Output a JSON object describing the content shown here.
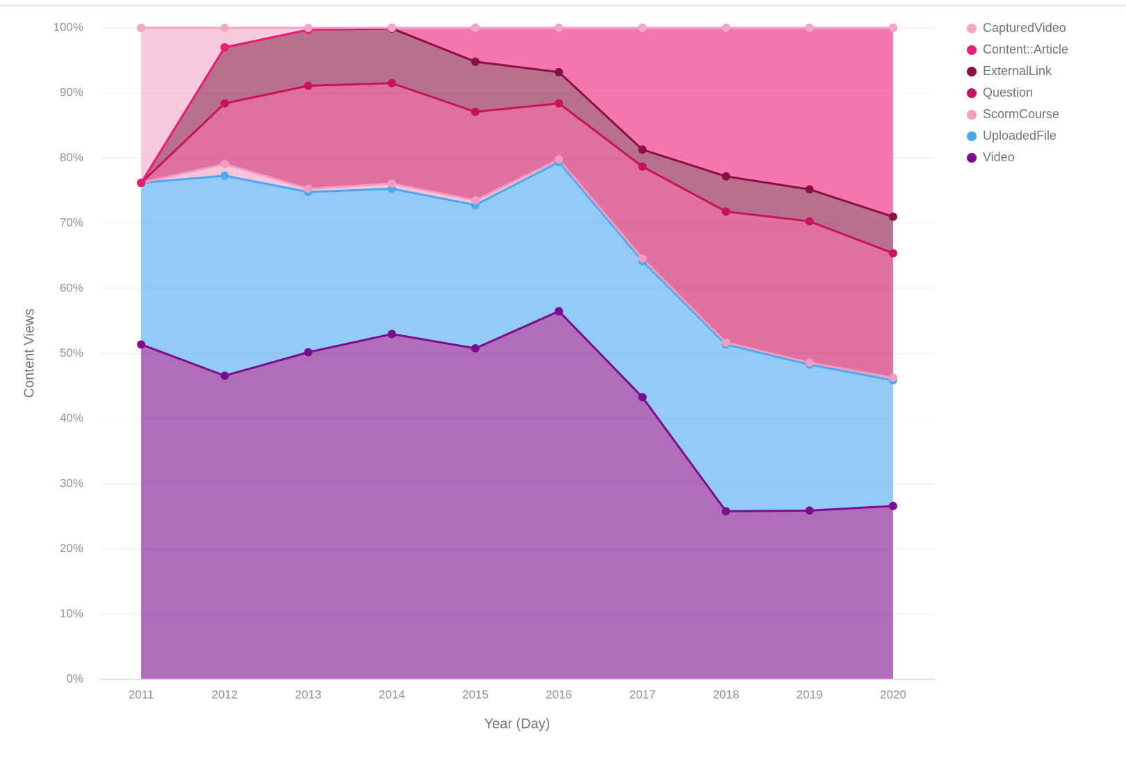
{
  "chart_data": {
    "type": "stacked_area_percent",
    "x_label": "Year (Day)",
    "y_label": "Content Views",
    "categories": [
      "2011",
      "2012",
      "2013",
      "2014",
      "2015",
      "2016",
      "2017",
      "2018",
      "2019",
      "2020"
    ],
    "ylim": [
      0,
      100
    ],
    "yticks": [
      {
        "value": 0,
        "label": "0%"
      },
      {
        "value": 10,
        "label": "10%"
      },
      {
        "value": 20,
        "label": "20%"
      },
      {
        "value": 30,
        "label": "30%"
      },
      {
        "value": 40,
        "label": "40%"
      },
      {
        "value": 50,
        "label": "50%"
      },
      {
        "value": 60,
        "label": "60%"
      },
      {
        "value": 70,
        "label": "70%"
      },
      {
        "value": 80,
        "label": "80%"
      },
      {
        "value": 90,
        "label": "90%"
      },
      {
        "value": 100,
        "label": "100%"
      }
    ],
    "grid": true,
    "legend": "right",
    "series": [
      {
        "name": "Video",
        "color": "#7d0b90",
        "values": [
          51.4,
          46.6,
          50.2,
          53.0,
          50.8,
          56.5,
          43.3,
          25.8,
          25.9,
          26.6
        ]
      },
      {
        "name": "UploadedFile",
        "color": "#4aa8ef",
        "values": [
          24.8,
          30.7,
          24.6,
          22.3,
          22.0,
          22.9,
          20.9,
          25.6,
          22.4,
          19.3
        ]
      },
      {
        "name": "ScormCourse",
        "color": "#f29cc3",
        "values": [
          0,
          1.8,
          0.5,
          0.8,
          0.7,
          0.4,
          0.4,
          0.3,
          0.3,
          0.4
        ]
      },
      {
        "name": "Question",
        "color": "#c8125d",
        "values": [
          0,
          9.3,
          15.8,
          15.4,
          13.6,
          8.6,
          14.1,
          20.1,
          21.7,
          19.1
        ]
      },
      {
        "name": "ExternalLink",
        "color": "#8a0f43",
        "values": [
          0,
          8.6,
          8.6,
          8.4,
          7.7,
          4.8,
          2.6,
          5.4,
          4.9,
          5.6
        ]
      },
      {
        "name": "Content::Article",
        "color": "#ec1e79",
        "values": [
          0,
          0,
          0,
          0.1,
          5.2,
          6.8,
          18.7,
          22.8,
          24.8,
          29.0
        ]
      },
      {
        "name": "CapturedVideo",
        "color": "#f4a6c8",
        "values": [
          23.8,
          3.0,
          0.3,
          0,
          0,
          0,
          0,
          0,
          0,
          0
        ]
      }
    ]
  }
}
